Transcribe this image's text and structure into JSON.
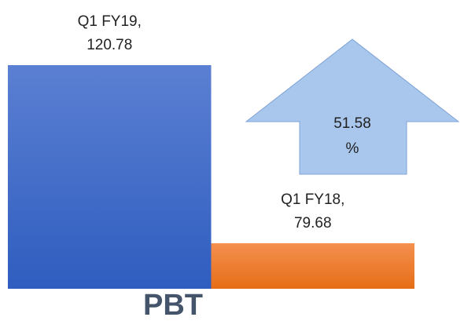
{
  "chart_data": {
    "type": "bar",
    "title": "PBT",
    "categories": [
      "Q1 FY19,",
      "Q1 FY18,"
    ],
    "values": [
      120.78,
      79.68
    ],
    "colors": [
      "#3f6bc9",
      "#ee7b30"
    ],
    "ylim": [
      69.18,
      120.78
    ],
    "annotation": [
      "51.58",
      "%"
    ]
  }
}
